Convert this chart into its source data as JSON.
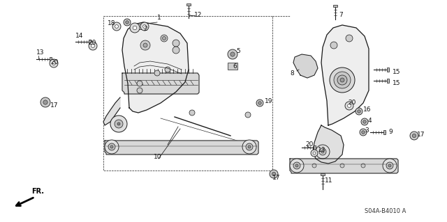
{
  "bg_color": "#ffffff",
  "fig_width": 6.4,
  "fig_height": 3.19,
  "dpi": 100,
  "part_number_text": "S04A-B4010 A",
  "line_color": "#1a1a1a",
  "label_fontsize": 6.5,
  "label_color": "#111111"
}
